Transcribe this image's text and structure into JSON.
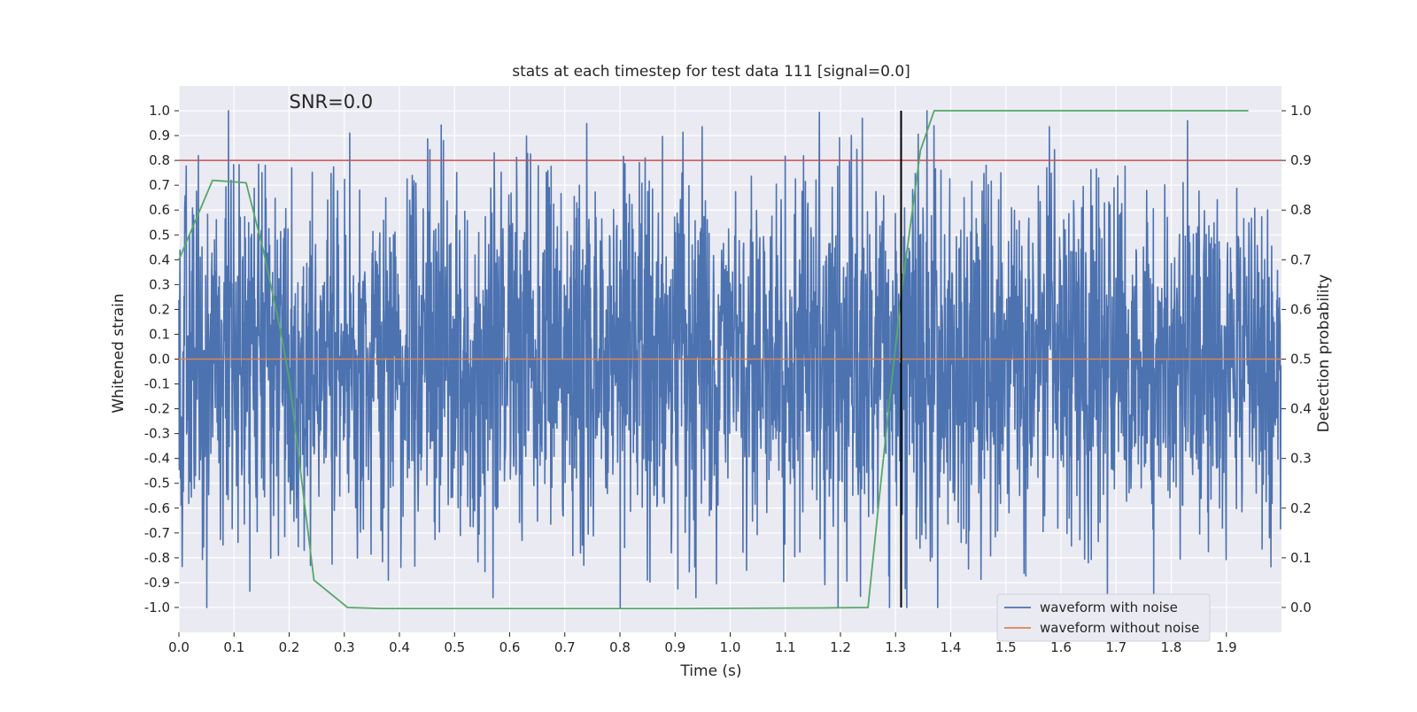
{
  "chart_data": {
    "type": "line",
    "title": "stats at each timestep for test data 111 [signal=0.0]",
    "xlabel": "Time (s)",
    "ylabel_left": "Whitened strain",
    "ylabel_right": "Detection probability",
    "xlim": [
      0.0,
      2.0
    ],
    "ylim_left": [
      -1.1,
      1.1
    ],
    "ylim_right": [
      -0.05,
      1.05
    ],
    "x_ticks": [
      "0.0",
      "0.1",
      "0.2",
      "0.3",
      "0.4",
      "0.5",
      "0.6",
      "0.7",
      "0.8",
      "0.9",
      "1.0",
      "1.1",
      "1.2",
      "1.3",
      "1.4",
      "1.5",
      "1.6",
      "1.7",
      "1.8",
      "1.9"
    ],
    "y_ticks_left": [
      "-1.0",
      "-0.9",
      "-0.8",
      "-0.7",
      "-0.6",
      "-0.5",
      "-0.4",
      "-0.3",
      "-0.2",
      "-0.1",
      "0.0",
      "0.1",
      "0.2",
      "0.3",
      "0.4",
      "0.5",
      "0.6",
      "0.7",
      "0.8",
      "0.9",
      "1.0"
    ],
    "y_ticks_right": [
      "0.0",
      "0.1",
      "0.2",
      "0.3",
      "0.4",
      "0.5",
      "0.6",
      "0.7",
      "0.8",
      "0.9",
      "1.0"
    ],
    "grid": true,
    "annotation": "SNR=0.0",
    "legend_position": "lower-right",
    "series": [
      {
        "name": "waveform with noise",
        "axis": "left",
        "color": "#4c72b0",
        "style": "dense noise",
        "range": [
          -1.0,
          1.0
        ],
        "notable_peaks": [
          {
            "x": 0.09,
            "y": 1.0
          },
          {
            "x": 0.31,
            "y": 0.91
          },
          {
            "x": 0.48,
            "y": 0.88
          },
          {
            "x": 0.57,
            "y": -0.96
          },
          {
            "x": 0.85,
            "y": -0.89
          },
          {
            "x": 1.22,
            "y": 0.9
          },
          {
            "x": 1.24,
            "y": 0.97
          },
          {
            "x": 1.31,
            "y": -0.97
          },
          {
            "x": 1.37,
            "y": 0.94
          },
          {
            "x": 1.65,
            "y": -0.82
          },
          {
            "x": 1.83,
            "y": 0.96
          }
        ]
      },
      {
        "name": "waveform without noise",
        "axis": "left",
        "color": "#dd8452",
        "x": [
          0.0,
          2.0
        ],
        "y": [
          0.0,
          0.0
        ]
      },
      {
        "name": "",
        "axis": "right",
        "color": "#55a868",
        "x": [
          0.0,
          0.061,
          0.122,
          0.153,
          0.184,
          0.2,
          0.245,
          0.306,
          0.367,
          0.612,
          0.918,
          1.163,
          1.25,
          1.275,
          1.31,
          1.345,
          1.37,
          1.94
        ],
        "y": [
          0.7,
          0.86,
          0.855,
          0.72,
          0.56,
          0.46,
          0.055,
          0.0,
          -0.002,
          -0.002,
          -0.002,
          -0.001,
          0.0,
          0.27,
          0.63,
          0.92,
          1.0,
          1.0
        ]
      }
    ],
    "threshold_line": {
      "axis": "right",
      "y": 0.9,
      "color": "#c44e52"
    },
    "marker_line": {
      "x": 1.31,
      "color": "#000000"
    }
  }
}
